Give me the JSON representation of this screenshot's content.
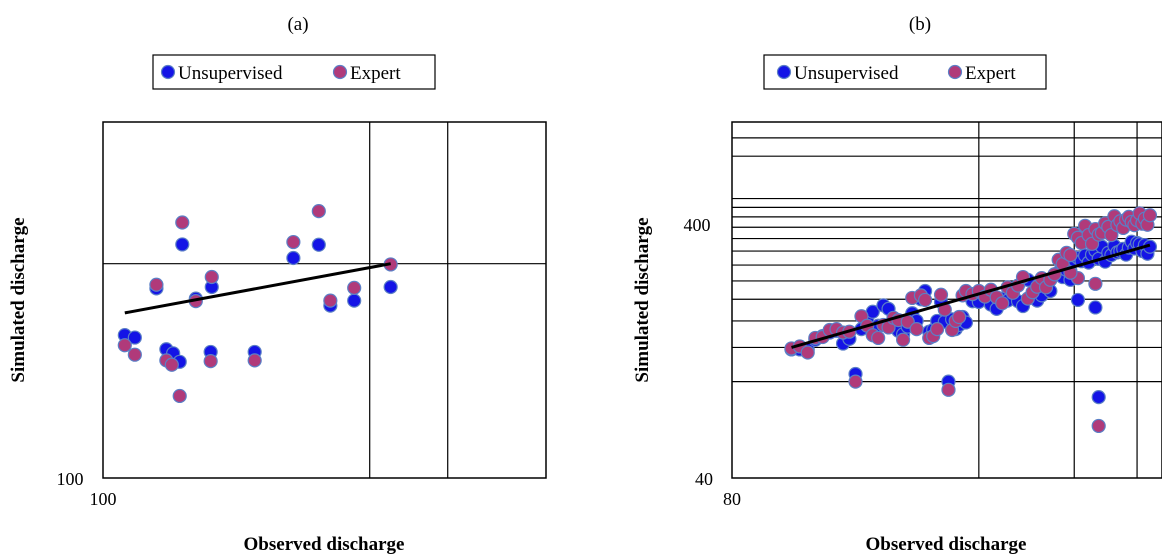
{
  "colors": {
    "unsupervised": "#1414e6",
    "expert": "#b03a7a",
    "marker_edge": "#5b7fc6",
    "trend": "#000000",
    "grid": "#000000"
  },
  "chart_data": [
    {
      "id": "a",
      "type": "scatter",
      "panel_label": "(a)",
      "xlabel": "Observed discharge",
      "ylabel": "Simulated discharge",
      "x_scale": "log",
      "y_scale": "log",
      "xlim": [
        100,
        1000
      ],
      "ylim": [
        100,
        1000
      ],
      "x_tick_labels": [
        {
          "value": 100,
          "label": "100"
        }
      ],
      "y_tick_labels": [
        {
          "value": 100,
          "label": "100"
        }
      ],
      "x_gridlines": [
        400,
        600
      ],
      "y_gridlines": [
        400
      ],
      "legend": [
        "Unsupervised",
        "Expert"
      ],
      "legend_position": "top",
      "series": [
        {
          "name": "Unsupervised",
          "points": [
            [
              112,
              252
            ],
            [
              118,
              248
            ],
            [
              132,
              341
            ],
            [
              139,
              230
            ],
            [
              144,
              224
            ],
            [
              149,
              212
            ],
            [
              151,
              453
            ],
            [
              162,
              319
            ],
            [
              175,
              226
            ],
            [
              176,
              344
            ],
            [
              220,
              226
            ],
            [
              269,
              415
            ],
            [
              307,
              452
            ],
            [
              326,
              305
            ],
            [
              369,
              315
            ],
            [
              446,
              344
            ]
          ]
        },
        {
          "name": "Expert",
          "points": [
            [
              112,
              236
            ],
            [
              118,
              222
            ],
            [
              132,
              349
            ],
            [
              139,
              214
            ],
            [
              143,
              208
            ],
            [
              149,
              170
            ],
            [
              151,
              522
            ],
            [
              162,
              314
            ],
            [
              175,
              213
            ],
            [
              176,
              367
            ],
            [
              220,
              214
            ],
            [
              269,
              460
            ],
            [
              307,
              562
            ],
            [
              326,
              315
            ],
            [
              369,
              342
            ],
            [
              446,
              398
            ]
          ]
        }
      ],
      "trendline": [
        [
          112,
          291
        ],
        [
          446,
          400
        ]
      ]
    },
    {
      "id": "b",
      "type": "scatter",
      "panel_label": "(b)",
      "xlabel": "Observed discharge",
      "ylabel": "Simulated discharge",
      "x_scale": "log",
      "y_scale": "log",
      "xlim": [
        80,
        800
      ],
      "ylim": [
        40,
        800
      ],
      "x_tick_labels": [
        {
          "value": 80,
          "label": "80"
        }
      ],
      "y_tick_labels": [
        {
          "value": 40,
          "label": "40"
        },
        {
          "value": 400,
          "label": "400"
        }
      ],
      "x_gridlines": [
        300,
        500,
        700
      ],
      "y_gridlines": [
        90,
        120,
        150,
        180,
        210,
        240,
        270,
        300,
        330,
        360,
        390,
        420,
        600,
        700
      ],
      "legend": [
        "Unsupervised",
        "Expert"
      ],
      "legend_position": "top",
      "series": [
        {
          "name": "Unsupervised",
          "points": [
            [
              110,
              118
            ],
            [
              115,
              118
            ],
            [
              120,
              118
            ],
            [
              125,
              128
            ],
            [
              130,
              132
            ],
            [
              135,
              136
            ],
            [
              140,
              138
            ],
            [
              145,
              124
            ],
            [
              150,
              129
            ],
            [
              155,
              96
            ],
            [
              160,
              140
            ],
            [
              165,
              150
            ],
            [
              170,
              162
            ],
            [
              175,
              144
            ],
            [
              180,
              171
            ],
            [
              185,
              166
            ],
            [
              190,
              148
            ],
            [
              195,
              138
            ],
            [
              200,
              134
            ],
            [
              205,
              143
            ],
            [
              210,
              160
            ],
            [
              215,
              150
            ],
            [
              220,
              180
            ],
            [
              225,
              193
            ],
            [
              230,
              137
            ],
            [
              235,
              139
            ],
            [
              240,
              150
            ],
            [
              245,
              176
            ],
            [
              250,
              149
            ],
            [
              255,
              90
            ],
            [
              260,
              152
            ],
            [
              265,
              140
            ],
            [
              270,
              145
            ],
            [
              275,
              155
            ],
            [
              280,
              148
            ],
            [
              290,
              177
            ],
            [
              300,
              176
            ],
            [
              310,
              187
            ],
            [
              320,
              172
            ],
            [
              330,
              166
            ],
            [
              340,
              181
            ],
            [
              350,
              178
            ],
            [
              360,
              190
            ],
            [
              370,
              177
            ],
            [
              380,
              170
            ],
            [
              390,
              212
            ],
            [
              400,
              183
            ],
            [
              410,
              178
            ],
            [
              420,
              186
            ],
            [
              430,
              204
            ],
            [
              440,
              193
            ],
            [
              450,
              222
            ],
            [
              460,
              226
            ],
            [
              470,
              217
            ],
            [
              480,
              230
            ],
            [
              490,
              228
            ],
            [
              500,
              250
            ],
            [
              510,
              255
            ],
            [
              520,
              248
            ],
            [
              530,
              260
            ],
            [
              540,
              245
            ],
            [
              550,
              262
            ],
            [
              560,
              271
            ],
            [
              570,
              253
            ],
            [
              580,
              280
            ],
            [
              590,
              247
            ],
            [
              600,
              266
            ],
            [
              610,
              261
            ],
            [
              620,
              282
            ],
            [
              630,
              267
            ],
            [
              640,
              270
            ],
            [
              650,
              275
            ],
            [
              660,
              262
            ],
            [
              670,
              278
            ],
            [
              680,
              292
            ],
            [
              690,
              276
            ],
            [
              700,
              289
            ],
            [
              710,
              286
            ],
            [
              720,
              270
            ],
            [
              730,
              284
            ],
            [
              740,
              264
            ],
            [
              750,
              280
            ],
            [
              560,
              168
            ],
            [
              510,
              179
            ],
            [
              570,
              79
            ],
            [
              490,
              212
            ]
          ]
        },
        {
          "name": "Expert",
          "points": [
            [
              110,
              119
            ],
            [
              115,
              121
            ],
            [
              120,
              115
            ],
            [
              125,
              130
            ],
            [
              130,
              131
            ],
            [
              135,
              139
            ],
            [
              140,
              140
            ],
            [
              145,
              136
            ],
            [
              150,
              137
            ],
            [
              155,
              90
            ],
            [
              160,
              156
            ],
            [
              165,
              144
            ],
            [
              170,
              133
            ],
            [
              175,
              130
            ],
            [
              180,
              145
            ],
            [
              185,
              142
            ],
            [
              190,
              154
            ],
            [
              195,
              151
            ],
            [
              200,
              128
            ],
            [
              205,
              149
            ],
            [
              210,
              182
            ],
            [
              215,
              140
            ],
            [
              220,
              186
            ],
            [
              225,
              179
            ],
            [
              230,
              130
            ],
            [
              235,
              132
            ],
            [
              240,
              140
            ],
            [
              245,
              187
            ],
            [
              250,
              165
            ],
            [
              255,
              84
            ],
            [
              260,
              139
            ],
            [
              265,
              150
            ],
            [
              270,
              155
            ],
            [
              275,
              186
            ],
            [
              280,
              193
            ],
            [
              290,
              188
            ],
            [
              300,
              193
            ],
            [
              310,
              184
            ],
            [
              320,
              195
            ],
            [
              330,
              183
            ],
            [
              340,
              174
            ],
            [
              350,
              199
            ],
            [
              360,
              190
            ],
            [
              370,
              202
            ],
            [
              380,
              217
            ],
            [
              390,
              181
            ],
            [
              400,
              191
            ],
            [
              410,
              200
            ],
            [
              420,
              215
            ],
            [
              430,
              199
            ],
            [
              440,
              212
            ],
            [
              450,
              222
            ],
            [
              460,
              251
            ],
            [
              470,
              242
            ],
            [
              480,
              266
            ],
            [
              490,
              261
            ],
            [
              500,
              312
            ],
            [
              510,
              302
            ],
            [
              520,
              289
            ],
            [
              530,
              334
            ],
            [
              540,
              309
            ],
            [
              550,
              287
            ],
            [
              560,
              325
            ],
            [
              570,
              310
            ],
            [
              580,
              315
            ],
            [
              590,
              341
            ],
            [
              600,
              331
            ],
            [
              610,
              309
            ],
            [
              620,
              362
            ],
            [
              630,
              336
            ],
            [
              640,
              347
            ],
            [
              650,
              328
            ],
            [
              660,
              352
            ],
            [
              670,
              360
            ],
            [
              680,
              345
            ],
            [
              690,
              336
            ],
            [
              700,
              350
            ],
            [
              710,
              371
            ],
            [
              720,
              340
            ],
            [
              730,
              355
            ],
            [
              740,
              337
            ],
            [
              750,
              365
            ],
            [
              560,
              205
            ],
            [
              510,
              215
            ],
            [
              570,
              62
            ],
            [
              490,
              225
            ]
          ]
        }
      ],
      "trendline": [
        [
          110,
          120
        ],
        [
          750,
          284
        ]
      ]
    }
  ]
}
